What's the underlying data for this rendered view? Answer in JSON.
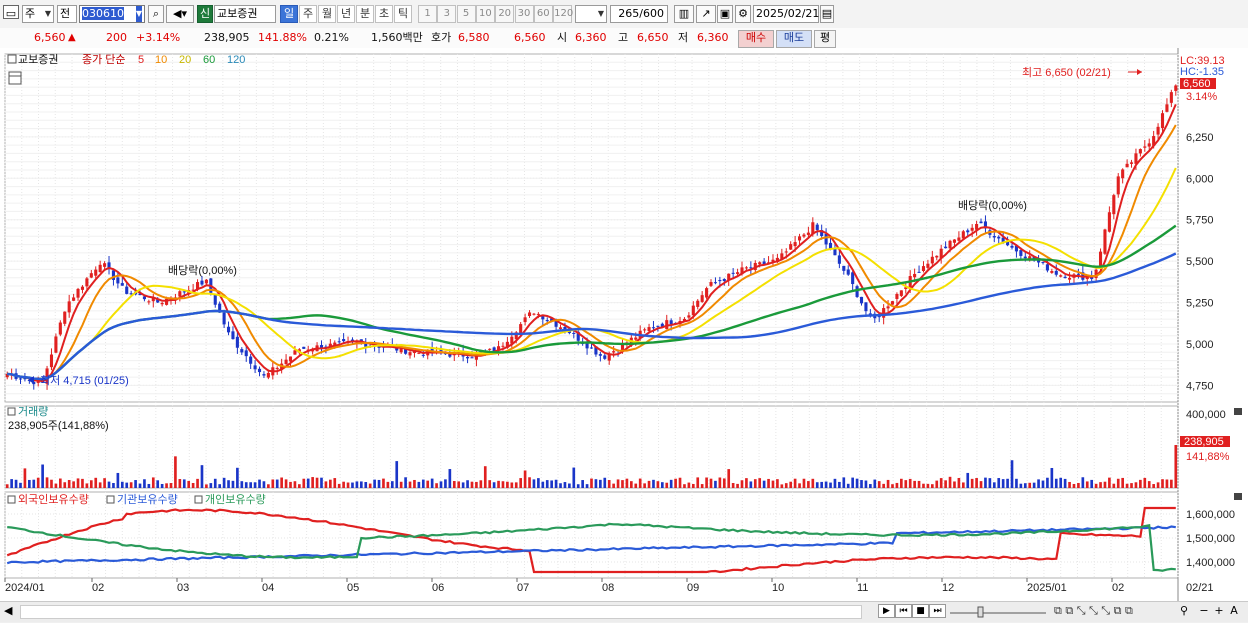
{
  "toolbar": {
    "period_select": "주",
    "compare_select": "전",
    "stock_code": "030610",
    "new_badge": "신",
    "stock_name": "교보증권",
    "timeframes": [
      "일",
      "주",
      "월",
      "년",
      "분",
      "초",
      "틱"
    ],
    "active_timeframe": "일",
    "intervals": [
      "1",
      "3",
      "5",
      "10",
      "20",
      "30",
      "60",
      "120"
    ],
    "bar_count": "265",
    "bar_total": "/600",
    "date": "2025/02/21"
  },
  "quote": {
    "price": "6,560",
    "arrow": "▲",
    "change": "200",
    "change_pct": "+3.14%",
    "volume": "238,905",
    "volume_ratio": "141.88%",
    "turnover_pct": "0.21%",
    "amount": "1,560백만",
    "bid_label": "호가",
    "ask_price": "6,580",
    "bid_price": "6,560",
    "open_label": "시",
    "open": "6,360",
    "high_label": "고",
    "high": "6,650",
    "low_label": "저",
    "low": "6,360",
    "buy_button": "매수",
    "sell_button": "매도",
    "eval_button": "평"
  },
  "price_panel": {
    "legend_name": "교보증권",
    "legend_close": "종가 단순",
    "ma_periods": [
      "5",
      "10",
      "20",
      "60",
      "120"
    ],
    "ma_colors": [
      "#e02020",
      "#f08a00",
      "#f4e000",
      "#1a9a3a",
      "#2a5ad8"
    ],
    "lc_label": "LC:39.13",
    "hc_label": "HC:-1.35",
    "current_price": "6,560",
    "current_pct": "3.14%",
    "high_annot": "최고 6,650 (02/21)",
    "low_annot": "최저 4,715 (01/25)",
    "dividend_1": "배당락(0,00%)",
    "dividend_2": "배당락(0,00%)",
    "y_ticks": [
      "6,250",
      "6,000",
      "5,750",
      "5,500",
      "5,250",
      "5,000",
      "4,750"
    ]
  },
  "volume_panel": {
    "title": "거래량",
    "value_label": "238,905주(141,88%)",
    "axis_max": "400,000",
    "last_value": "238,905",
    "last_pct": "141,88%"
  },
  "holdings_panel": {
    "series": [
      "외국인보유수량",
      "기관보유수량",
      "개인보유수량"
    ],
    "colors": [
      "#e02020",
      "#2a5ad8",
      "#2a9a5a"
    ],
    "y_ticks": [
      "1,600,000",
      "1,500,000",
      "1,400,000"
    ]
  },
  "x_axis": {
    "labels": [
      "2024/01",
      "02",
      "03",
      "04",
      "05",
      "06",
      "07",
      "08",
      "09",
      "10",
      "11",
      "12",
      "2025/01",
      "02"
    ],
    "right_label": "02/21"
  },
  "chart_data": {
    "type": "candlestick",
    "x_range": [
      "2024/01",
      "2025/02/21"
    ],
    "ylim": [
      4650,
      6750
    ],
    "price_points": [
      {
        "t": 0.0,
        "close": 4820
      },
      {
        "t": 0.03,
        "close": 4760
      },
      {
        "t": 0.05,
        "close": 5230
      },
      {
        "t": 0.08,
        "close": 5500
      },
      {
        "t": 0.1,
        "close": 5320
      },
      {
        "t": 0.13,
        "close": 5250
      },
      {
        "t": 0.17,
        "close": 5380
      },
      {
        "t": 0.19,
        "close": 5050
      },
      {
        "t": 0.22,
        "close": 4800
      },
      {
        "t": 0.25,
        "close": 4970
      },
      {
        "t": 0.3,
        "close": 5010
      },
      {
        "t": 0.35,
        "close": 4950
      },
      {
        "t": 0.4,
        "close": 4930
      },
      {
        "t": 0.42,
        "close": 4970
      },
      {
        "t": 0.45,
        "close": 5200
      },
      {
        "t": 0.48,
        "close": 5080
      },
      {
        "t": 0.51,
        "close": 4920
      },
      {
        "t": 0.55,
        "close": 5100
      },
      {
        "t": 0.58,
        "close": 5160
      },
      {
        "t": 0.6,
        "close": 5350
      },
      {
        "t": 0.63,
        "close": 5450
      },
      {
        "t": 0.66,
        "close": 5510
      },
      {
        "t": 0.69,
        "close": 5720
      },
      {
        "t": 0.72,
        "close": 5400
      },
      {
        "t": 0.74,
        "close": 5130
      },
      {
        "t": 0.78,
        "close": 5450
      },
      {
        "t": 0.8,
        "close": 5570
      },
      {
        "t": 0.83,
        "close": 5730
      },
      {
        "t": 0.86,
        "close": 5580
      },
      {
        "t": 0.9,
        "close": 5420
      },
      {
        "t": 0.93,
        "close": 5400
      },
      {
        "t": 0.95,
        "close": 6000
      },
      {
        "t": 0.98,
        "close": 6250
      },
      {
        "t": 1.0,
        "close": 6560
      }
    ],
    "volume_max": 400000,
    "last_volume": 238905
  },
  "scrollbar": {
    "nav_buttons": [
      "▶",
      "⏮",
      "■",
      "⏭"
    ],
    "zoom": [
      "−",
      "+",
      "A"
    ]
  }
}
